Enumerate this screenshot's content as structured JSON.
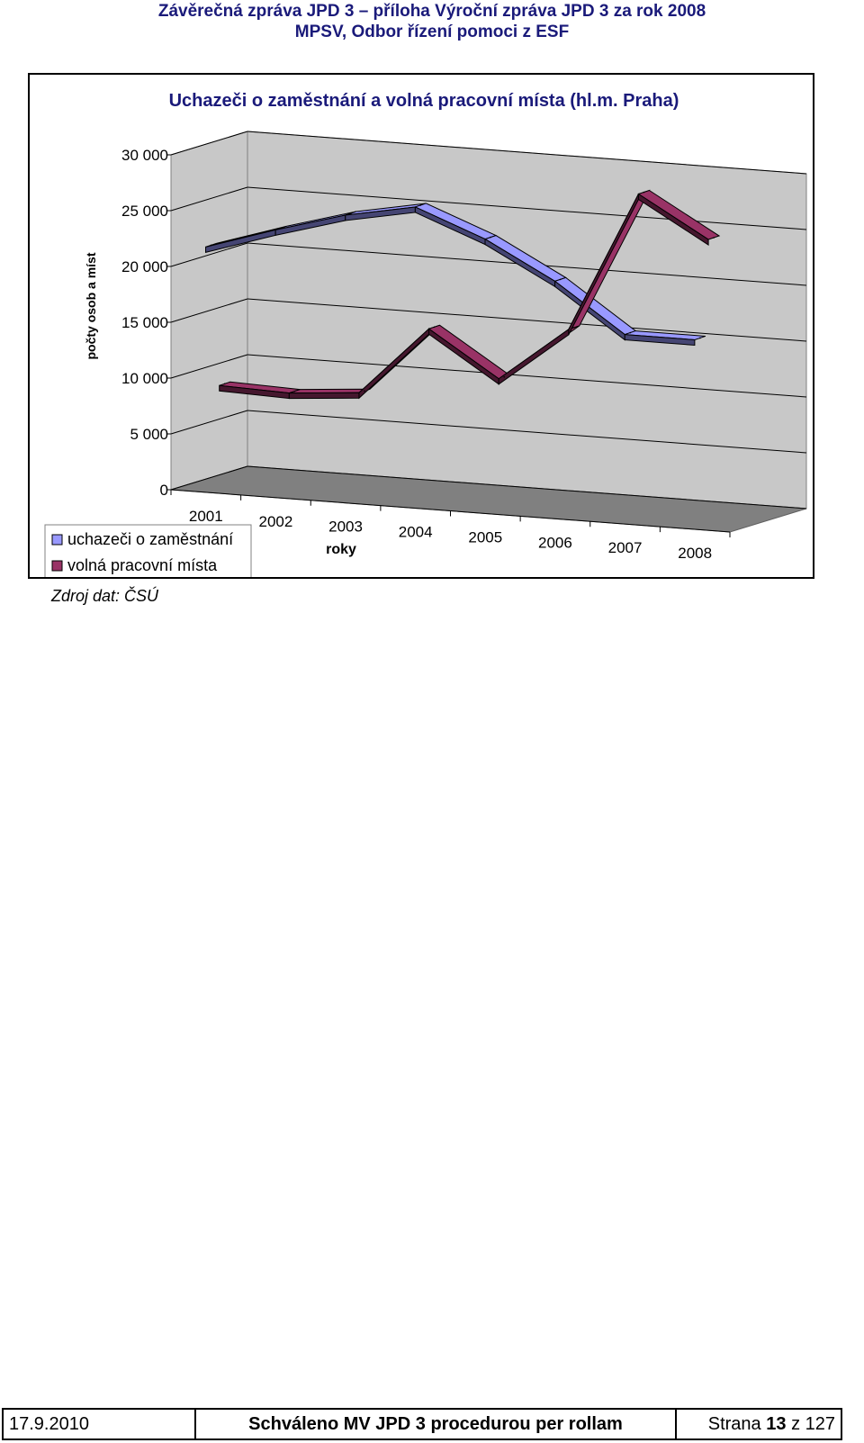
{
  "header": {
    "line1": "Závěrečná zpráva JPD 3 – příloha Výroční zpráva JPD 3 za rok 2008",
    "line2": "MPSV, Odbor řízení pomoci z ESF"
  },
  "chart_data": {
    "type": "line",
    "style": "3d",
    "title": "Uchazeči o zaměstnání a volná pracovní místa (hl.m. Praha)",
    "xlabel": "roky",
    "ylabel": "počty osob a míst",
    "categories": [
      "2001",
      "2002",
      "2003",
      "2004",
      "2005",
      "2006",
      "2007",
      "2008"
    ],
    "ylim": [
      0,
      30000
    ],
    "yticks": [
      0,
      5000,
      10000,
      15000,
      20000,
      25000,
      30000
    ],
    "ytick_labels": [
      "0",
      "5 000",
      "10 000",
      "15 000",
      "20 000",
      "25 000",
      "30 000"
    ],
    "grid": true,
    "legend_position": "bottom-left",
    "series": [
      {
        "name": "uchazeči o zaměstnání",
        "color": "#9999ff",
        "values": [
          22000,
          24000,
          25800,
          27000,
          24600,
          21300,
          17000,
          17000
        ]
      },
      {
        "name": "volná pracovní místa",
        "color": "#993366",
        "values": [
          9200,
          9000,
          9500,
          15700,
          11700,
          16600,
          29200,
          25600
        ]
      }
    ]
  },
  "source": "Zdroj dat: ČSÚ",
  "footer": {
    "date": "17.9.2010",
    "approved": "Schváleno MV JPD 3 procedurou per rollam",
    "page_prefix": "Strana",
    "page_number": "13",
    "page_sep": "z",
    "page_total": "127"
  }
}
